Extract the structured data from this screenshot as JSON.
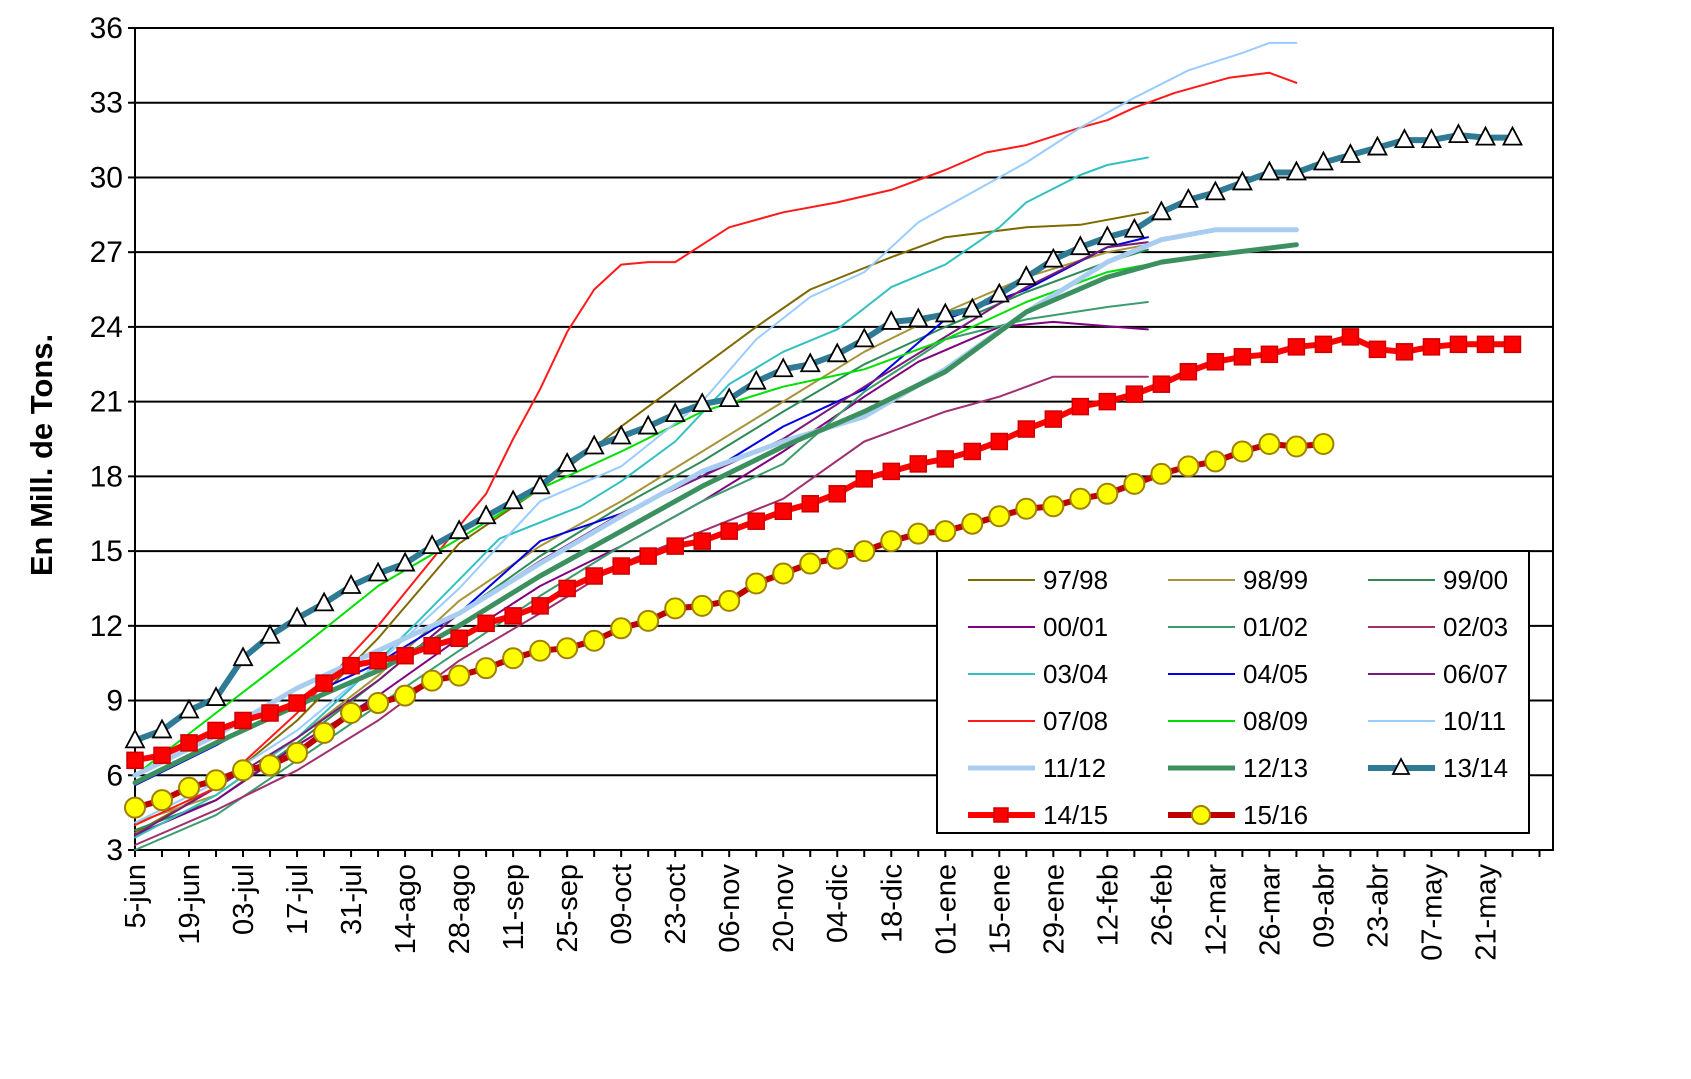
{
  "chart_data": {
    "type": "line",
    "ylabel": "En Mill. de Tons.",
    "xlabel": "",
    "ylim": [
      3,
      36
    ],
    "yticks": [
      3,
      6,
      9,
      12,
      15,
      18,
      21,
      24,
      27,
      30,
      33,
      36
    ],
    "grid": "horizontal",
    "legend_position": "lower-right",
    "x_tick_labels": [
      "5-jun",
      "19-jun",
      "03-jul",
      "17-jul",
      "31-jul",
      "14-ago",
      "28-ago",
      "11-sep",
      "25-sep",
      "09-oct",
      "23-oct",
      "06-nov",
      "20-nov",
      "04-dic",
      "18-dic",
      "01-ene",
      "15-ene",
      "29-ene",
      "12-feb",
      "26-feb",
      "12-mar",
      "26-mar",
      "09-abr",
      "23-abr",
      "07-may",
      "21-may"
    ],
    "weeks_count": 53,
    "series": [
      {
        "name": "97/98",
        "color": "#7f6a00",
        "width": 2,
        "marker": "none",
        "points": [
          [
            0,
            3.7
          ],
          [
            6,
            5.5
          ],
          [
            12,
            8.2
          ],
          [
            18,
            11.5
          ],
          [
            24,
            15.3
          ],
          [
            30,
            17.5
          ],
          [
            36,
            20.0
          ],
          [
            40,
            21.6
          ],
          [
            46,
            24.0
          ],
          [
            50,
            25.5
          ],
          [
            56,
            26.8
          ],
          [
            60,
            27.6
          ],
          [
            66,
            28.0
          ],
          [
            70,
            28.1
          ],
          [
            75,
            28.6
          ]
        ]
      },
      {
        "name": "98/99",
        "color": "#a89438",
        "width": 2,
        "marker": "none",
        "points": [
          [
            0,
            4.1
          ],
          [
            6,
            5.2
          ],
          [
            12,
            7.5
          ],
          [
            18,
            10.0
          ],
          [
            24,
            13.0
          ],
          [
            30,
            15.2
          ],
          [
            36,
            17.0
          ],
          [
            42,
            19.0
          ],
          [
            48,
            21.0
          ],
          [
            54,
            23.0
          ],
          [
            60,
            24.6
          ],
          [
            66,
            26.0
          ],
          [
            72,
            27.0
          ],
          [
            75,
            27.3
          ]
        ]
      },
      {
        "name": "99/00",
        "color": "#2e8b57",
        "width": 2,
        "marker": "none",
        "points": [
          [
            0,
            3.8
          ],
          [
            6,
            5.0
          ],
          [
            12,
            7.3
          ],
          [
            18,
            9.8
          ],
          [
            24,
            12.5
          ],
          [
            30,
            14.8
          ],
          [
            36,
            16.8
          ],
          [
            42,
            18.6
          ],
          [
            48,
            20.6
          ],
          [
            54,
            22.5
          ],
          [
            60,
            24.0
          ],
          [
            66,
            25.4
          ],
          [
            72,
            26.6
          ],
          [
            75,
            27.1
          ]
        ]
      },
      {
        "name": "00/01",
        "color": "#800080",
        "width": 2,
        "marker": "none",
        "points": [
          [
            0,
            3.6
          ],
          [
            6,
            5.0
          ],
          [
            12,
            7.2
          ],
          [
            18,
            9.2
          ],
          [
            24,
            11.5
          ],
          [
            30,
            13.6
          ],
          [
            36,
            15.2
          ],
          [
            42,
            17.0
          ],
          [
            48,
            19.0
          ],
          [
            54,
            21.2
          ],
          [
            58,
            22.6
          ],
          [
            64,
            24.0
          ],
          [
            68,
            24.2
          ],
          [
            75,
            23.9
          ]
        ]
      },
      {
        "name": "01/02",
        "color": "#3b9d6e",
        "width": 2,
        "marker": "none",
        "points": [
          [
            0,
            3.0
          ],
          [
            6,
            4.4
          ],
          [
            12,
            6.6
          ],
          [
            18,
            8.8
          ],
          [
            24,
            11.0
          ],
          [
            30,
            13.2
          ],
          [
            36,
            15.2
          ],
          [
            42,
            17.0
          ],
          [
            48,
            18.5
          ],
          [
            54,
            21.4
          ],
          [
            60,
            23.5
          ],
          [
            66,
            24.3
          ],
          [
            72,
            24.8
          ],
          [
            75,
            25.0
          ]
        ]
      },
      {
        "name": "02/03",
        "color": "#a0306e",
        "width": 2,
        "marker": "none",
        "points": [
          [
            0,
            3.2
          ],
          [
            6,
            4.6
          ],
          [
            12,
            6.2
          ],
          [
            18,
            8.2
          ],
          [
            24,
            10.6
          ],
          [
            30,
            12.5
          ],
          [
            36,
            14.5
          ],
          [
            42,
            15.8
          ],
          [
            48,
            17.1
          ],
          [
            54,
            19.4
          ],
          [
            60,
            20.6
          ],
          [
            64,
            21.2
          ],
          [
            68,
            22.0
          ],
          [
            75,
            22.0
          ]
        ]
      },
      {
        "name": "03/04",
        "color": "#33c0c0",
        "width": 2,
        "marker": "none",
        "points": [
          [
            0,
            3.5
          ],
          [
            6,
            5.2
          ],
          [
            12,
            7.5
          ],
          [
            16,
            9.5
          ],
          [
            21,
            12.2
          ],
          [
            27,
            15.5
          ],
          [
            33,
            16.8
          ],
          [
            36,
            17.8
          ],
          [
            40,
            19.4
          ],
          [
            44,
            21.7
          ],
          [
            48,
            23.0
          ],
          [
            52,
            23.9
          ],
          [
            56,
            25.6
          ],
          [
            60,
            26.5
          ],
          [
            64,
            28.0
          ],
          [
            66,
            29.0
          ],
          [
            70,
            30.1
          ],
          [
            72,
            30.5
          ],
          [
            75,
            30.8
          ]
        ]
      },
      {
        "name": "04/05",
        "color": "#0000e0",
        "width": 2,
        "marker": "none",
        "points": [
          [
            0,
            5.6
          ],
          [
            6,
            7.2
          ],
          [
            12,
            9.0
          ],
          [
            18,
            10.5
          ],
          [
            24,
            12.5
          ],
          [
            30,
            15.4
          ],
          [
            36,
            16.5
          ],
          [
            42,
            18.0
          ],
          [
            48,
            20.0
          ],
          [
            54,
            21.5
          ],
          [
            60,
            24.3
          ],
          [
            66,
            25.5
          ],
          [
            72,
            27.2
          ],
          [
            75,
            27.6
          ]
        ]
      },
      {
        "name": "06/07",
        "color": "#7a1a7a",
        "width": 2,
        "marker": "none",
        "points": [
          [
            0,
            3.6
          ],
          [
            6,
            5.5
          ],
          [
            12,
            7.5
          ],
          [
            18,
            9.8
          ],
          [
            24,
            12.5
          ],
          [
            30,
            14.6
          ],
          [
            36,
            16.5
          ],
          [
            42,
            18.0
          ],
          [
            48,
            19.5
          ],
          [
            54,
            21.6
          ],
          [
            60,
            23.6
          ],
          [
            66,
            25.6
          ],
          [
            72,
            27.2
          ],
          [
            75,
            27.4
          ]
        ]
      },
      {
        "name": "07/08",
        "color": "#ff1a1a",
        "width": 2,
        "marker": "none",
        "points": [
          [
            0,
            4.0
          ],
          [
            6,
            5.5
          ],
          [
            12,
            8.5
          ],
          [
            18,
            12.0
          ],
          [
            21,
            14.0
          ],
          [
            24,
            16.0
          ],
          [
            26,
            17.3
          ],
          [
            28,
            19.5
          ],
          [
            30,
            21.5
          ],
          [
            32,
            23.8
          ],
          [
            34,
            25.5
          ],
          [
            36,
            26.5
          ],
          [
            38,
            26.6
          ],
          [
            40,
            26.6
          ],
          [
            42,
            27.3
          ],
          [
            44,
            28.0
          ],
          [
            48,
            28.6
          ],
          [
            52,
            29.0
          ],
          [
            56,
            29.5
          ],
          [
            60,
            30.3
          ],
          [
            63,
            31.0
          ],
          [
            66,
            31.3
          ],
          [
            70,
            32.0
          ],
          [
            72,
            32.3
          ],
          [
            74,
            32.8
          ],
          [
            77,
            33.4
          ],
          [
            81,
            34.0
          ],
          [
            84,
            34.2
          ],
          [
            86,
            33.8
          ]
        ]
      },
      {
        "name": "08/09",
        "color": "#00e000",
        "width": 2,
        "marker": "none",
        "points": [
          [
            0,
            6.0
          ],
          [
            6,
            8.5
          ],
          [
            12,
            11.0
          ],
          [
            18,
            13.6
          ],
          [
            24,
            15.5
          ],
          [
            30,
            17.5
          ],
          [
            36,
            19.0
          ],
          [
            42,
            20.6
          ],
          [
            48,
            21.6
          ],
          [
            54,
            22.3
          ],
          [
            60,
            23.5
          ],
          [
            66,
            25.0
          ],
          [
            72,
            26.2
          ],
          [
            75,
            26.5
          ]
        ]
      },
      {
        "name": "10/11",
        "color": "#99ccff",
        "width": 2,
        "marker": "none",
        "points": [
          [
            0,
            4.1
          ],
          [
            6,
            5.7
          ],
          [
            12,
            7.8
          ],
          [
            18,
            10.5
          ],
          [
            24,
            13.5
          ],
          [
            30,
            17.0
          ],
          [
            36,
            18.4
          ],
          [
            42,
            21.0
          ],
          [
            46,
            23.5
          ],
          [
            50,
            25.2
          ],
          [
            54,
            26.2
          ],
          [
            58,
            28.2
          ],
          [
            62,
            29.4
          ],
          [
            66,
            30.6
          ],
          [
            70,
            32.0
          ],
          [
            74,
            33.2
          ],
          [
            78,
            34.3
          ],
          [
            82,
            35.0
          ],
          [
            84,
            35.4
          ],
          [
            86,
            35.4
          ]
        ]
      },
      {
        "name": "11/12",
        "color": "#a8cdf0",
        "width": 5,
        "marker": "none",
        "points": [
          [
            0,
            6.0
          ],
          [
            6,
            7.6
          ],
          [
            12,
            9.5
          ],
          [
            18,
            11.0
          ],
          [
            24,
            12.5
          ],
          [
            30,
            14.5
          ],
          [
            36,
            16.4
          ],
          [
            42,
            18.2
          ],
          [
            48,
            19.4
          ],
          [
            54,
            20.4
          ],
          [
            60,
            22.3
          ],
          [
            66,
            24.6
          ],
          [
            72,
            26.6
          ],
          [
            76,
            27.5
          ],
          [
            80,
            27.9
          ],
          [
            86,
            27.9
          ]
        ]
      },
      {
        "name": "12/13",
        "color": "#3c9060",
        "width": 5,
        "marker": "none",
        "points": [
          [
            0,
            5.7
          ],
          [
            6,
            7.3
          ],
          [
            12,
            8.8
          ],
          [
            18,
            10.2
          ],
          [
            24,
            12.0
          ],
          [
            30,
            14.0
          ],
          [
            36,
            15.8
          ],
          [
            42,
            17.6
          ],
          [
            48,
            19.2
          ],
          [
            54,
            20.6
          ],
          [
            60,
            22.2
          ],
          [
            66,
            24.6
          ],
          [
            72,
            26.0
          ],
          [
            76,
            26.6
          ],
          [
            80,
            26.9
          ],
          [
            86,
            27.3
          ]
        ]
      },
      {
        "name": "13/14",
        "color": "#2f7a94",
        "width": 6,
        "marker": "triangle",
        "marker_fill": "#ffffff",
        "marker_stroke": "#000000",
        "values": [
          7.4,
          7.8,
          8.6,
          9.1,
          10.7,
          11.6,
          12.3,
          12.9,
          13.6,
          14.1,
          14.5,
          15.2,
          15.8,
          16.4,
          17.0,
          17.6,
          18.5,
          19.2,
          19.6,
          20.0,
          20.5,
          20.9,
          21.1,
          21.8,
          22.3,
          22.5,
          22.9,
          23.5,
          24.2,
          24.3,
          24.5,
          24.7,
          25.3,
          26.0,
          26.7,
          27.2,
          27.6,
          27.9,
          28.6,
          29.1,
          29.4,
          29.8,
          30.2,
          30.2,
          30.6,
          30.9,
          31.2,
          31.5,
          31.5,
          31.7,
          31.6,
          31.6
        ]
      },
      {
        "name": "14/15",
        "color": "#ff0000",
        "width": 6,
        "marker": "square",
        "marker_fill": "#ff0000",
        "marker_stroke": "#cc0000",
        "values": [
          6.6,
          6.8,
          7.3,
          7.8,
          8.2,
          8.5,
          8.9,
          9.7,
          10.4,
          10.6,
          10.8,
          11.2,
          11.5,
          12.1,
          12.4,
          12.8,
          13.5,
          14.0,
          14.4,
          14.8,
          15.2,
          15.4,
          15.8,
          16.2,
          16.6,
          16.9,
          17.3,
          17.9,
          18.2,
          18.5,
          18.7,
          19.0,
          19.4,
          19.9,
          20.3,
          20.8,
          21.0,
          21.3,
          21.7,
          22.2,
          22.6,
          22.8,
          22.9,
          23.2,
          23.3,
          23.6,
          23.1,
          23.0,
          23.2,
          23.3,
          23.3,
          23.3
        ]
      },
      {
        "name": "15/16",
        "color": "#c00000",
        "width": 6,
        "marker": "circle",
        "marker_fill": "#ffff00",
        "marker_stroke": "#a08000",
        "values": [
          4.7,
          5.0,
          5.5,
          5.8,
          6.2,
          6.4,
          6.9,
          7.7,
          8.5,
          8.9,
          9.2,
          9.8,
          10.0,
          10.3,
          10.7,
          11.0,
          11.1,
          11.4,
          11.9,
          12.2,
          12.7,
          12.8,
          13.0,
          13.7,
          14.1,
          14.5,
          14.7,
          15.0,
          15.4,
          15.7,
          15.8,
          16.1,
          16.4,
          16.7,
          16.8,
          17.1,
          17.3,
          17.7,
          18.1,
          18.4,
          18.6,
          19.0,
          19.3,
          19.2,
          19.3
        ]
      }
    ]
  }
}
